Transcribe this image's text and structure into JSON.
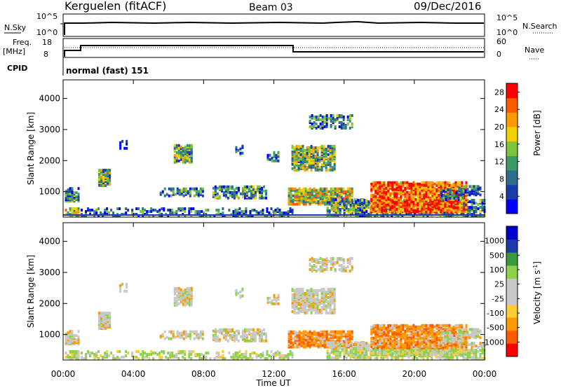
{
  "header": {
    "station": "Kerguelen (fitACF)",
    "beam": "Beam 03",
    "date": "09/Dec/2016"
  },
  "params": {
    "nsky_label": "N.Sky",
    "nsearch_label": "N.Search",
    "left_top": "10^5",
    "left_bottom": "10^0",
    "right_top": "10^5",
    "right_bottom": "10^0",
    "freq_label": "Freq.",
    "freq_unit": "[MHz]",
    "freq_top": "18",
    "freq_bottom": "8",
    "nave_label": "Nave",
    "nave_top": "60",
    "nave_bottom": "0",
    "cpid_label": "CPID",
    "cpid_value": "normal (fast) 151"
  },
  "colors": {
    "power_scale": [
      "#0000ff",
      "#1a3caa",
      "#2e6e8c",
      "#3a9a6a",
      "#7fc23c",
      "#f0d200",
      "#ff9900",
      "#ff5a00",
      "#ff0000"
    ],
    "velocity_scale": [
      "#ff0000",
      "#ff5a00",
      "#ff9900",
      "#ffcc33",
      "#c8c8c8",
      "#c8c8c8",
      "#8cd24b",
      "#3a9a3a",
      "#1a3caa",
      "#0000cc"
    ]
  },
  "chart_data": [
    {
      "type": "heatmap",
      "name": "power",
      "ylabel": "Slant Range [km]",
      "yticks": [
        "1000",
        "2000",
        "3000",
        "4000"
      ],
      "ylim": [
        180,
        4600
      ],
      "xticks": [
        "00:00",
        "04:00",
        "08:00",
        "12:00",
        "16:00",
        "20:00",
        "00:00"
      ],
      "xlim": [
        0,
        24
      ],
      "colorbar_label": "Power [dB]",
      "colorbar_ticks": [
        "4",
        "8",
        "12",
        "16",
        "20",
        "24",
        "28"
      ],
      "colorbar_range": [
        0,
        30
      ]
    },
    {
      "type": "heatmap",
      "name": "velocity",
      "ylabel": "Slant Range [km]",
      "yticks": [
        "1000",
        "2000",
        "3000",
        "4000"
      ],
      "ylim": [
        180,
        4600
      ],
      "xticks": [
        "00:00",
        "04:00",
        "08:00",
        "12:00",
        "16:00",
        "20:00",
        "00:00"
      ],
      "xlim": [
        0,
        24
      ],
      "xlabel": "Time UT",
      "colorbar_label": "Velocity [m s",
      "colorbar_sup": "-1",
      "colorbar_label_end": "]",
      "colorbar_ticks": [
        "-1000",
        "-500",
        "-100",
        "-25",
        "25",
        "100",
        "500",
        "1000"
      ],
      "colorbar_range": [
        -1000,
        1000
      ]
    }
  ]
}
